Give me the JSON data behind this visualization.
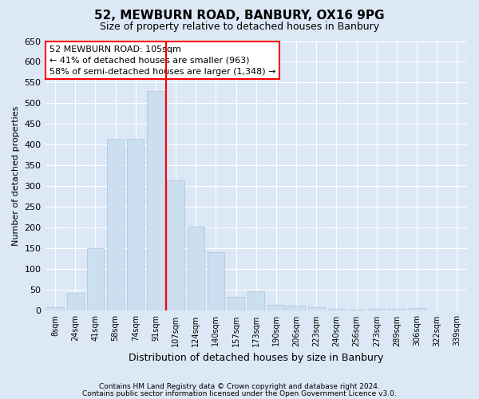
{
  "title": "52, MEWBURN ROAD, BANBURY, OX16 9PG",
  "subtitle": "Size of property relative to detached houses in Banbury",
  "xlabel": "Distribution of detached houses by size in Banbury",
  "ylabel": "Number of detached properties",
  "categories": [
    "8sqm",
    "24sqm",
    "41sqm",
    "58sqm",
    "74sqm",
    "91sqm",
    "107sqm",
    "124sqm",
    "140sqm",
    "157sqm",
    "173sqm",
    "190sqm",
    "206sqm",
    "223sqm",
    "240sqm",
    "256sqm",
    "273sqm",
    "289sqm",
    "306sqm",
    "322sqm",
    "339sqm"
  ],
  "values": [
    8,
    44,
    150,
    415,
    415,
    530,
    315,
    203,
    142,
    33,
    47,
    15,
    12,
    8,
    4,
    2,
    5,
    5,
    6,
    0,
    0
  ],
  "bar_color": "#ccdff0",
  "bar_edge_color": "#aac4de",
  "vline_color": "red",
  "vline_bin_index": 6,
  "annotation_text": "52 MEWBURN ROAD: 105sqm\n← 41% of detached houses are smaller (963)\n58% of semi-detached houses are larger (1,348) →",
  "annotation_box_facecolor": "white",
  "annotation_box_edgecolor": "red",
  "ylim": [
    0,
    650
  ],
  "yticks": [
    0,
    50,
    100,
    150,
    200,
    250,
    300,
    350,
    400,
    450,
    500,
    550,
    600,
    650
  ],
  "footer_line1": "Contains HM Land Registry data © Crown copyright and database right 2024.",
  "footer_line2": "Contains public sector information licensed under the Open Government Licence v3.0.",
  "fig_facecolor": "#dce8f5",
  "axes_facecolor": "#dce8f5",
  "grid_color": "white",
  "title_fontsize": 11,
  "subtitle_fontsize": 9,
  "ylabel_fontsize": 8,
  "xlabel_fontsize": 9,
  "tick_fontsize": 8,
  "annotation_fontsize": 8,
  "footer_fontsize": 6.5,
  "figsize": [
    6.0,
    5.0
  ],
  "dpi": 100
}
